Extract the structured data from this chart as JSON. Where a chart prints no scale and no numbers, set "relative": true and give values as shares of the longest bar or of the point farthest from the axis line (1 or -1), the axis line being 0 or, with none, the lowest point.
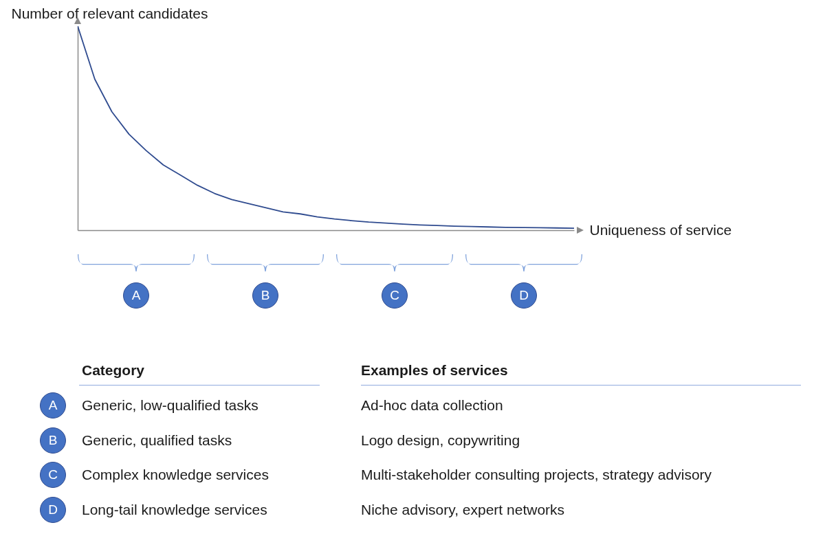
{
  "chart_data": {
    "type": "line",
    "relative": true,
    "ylabel": "Number of relevant candidates",
    "xlabel": "Uniqueness of service",
    "categories": [
      null,
      null,
      null,
      null,
      null,
      null,
      null,
      null,
      null,
      null,
      null,
      null,
      null,
      null,
      null,
      null,
      null,
      null,
      null,
      null,
      null,
      null,
      null,
      null,
      null,
      null,
      null,
      null,
      null,
      null
    ],
    "series": [
      {
        "color": "#2f4b8f",
        "values": [
          1.0,
          0.74,
          0.58,
          0.47,
          0.39,
          0.32,
          0.27,
          0.22,
          0.18,
          0.15,
          0.13,
          0.11,
          0.09,
          0.08,
          0.065,
          0.055,
          0.047,
          0.04,
          0.035,
          0.03,
          0.026,
          0.023,
          0.02,
          0.018,
          0.016,
          0.014,
          0.013,
          0.012,
          0.011,
          0.01
        ]
      }
    ],
    "grid": false,
    "legend": false,
    "annotations": [
      "A",
      "B",
      "C",
      "D",
      "Category",
      "Examples of services",
      "A",
      "Generic, low-qualified tasks",
      "Ad-hoc data collection",
      "B",
      "Generic, qualified tasks",
      "Logo design, copywriting",
      "C",
      "Complex knowledge services",
      "Multi-stakeholder consulting projects, strategy advisory",
      "D",
      "Long-tail knowledge services",
      "Niche advisory, expert networks"
    ]
  }
}
